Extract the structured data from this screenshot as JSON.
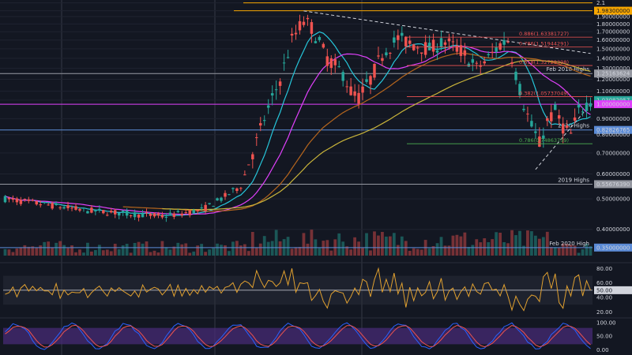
{
  "chart_data": {
    "type": "candlestick",
    "price_axis": {
      "range": [
        0.33,
        2.12
      ],
      "ticks": [
        "2.1",
        "1.98300000",
        "1.90000000",
        "1.80000000",
        "1.70000000",
        "1.60000000",
        "1.50000000",
        "1.40000000",
        "1.30000000",
        "1.25163624",
        "1.20000000",
        "1.10000000",
        "1.03082957",
        "1.00000000",
        "0.90000000",
        "0.82826765",
        "0.80000000",
        "0.70000000",
        "0.60000000",
        "0.55676390",
        "0.50000000",
        "0.40000000",
        "0.35000000"
      ],
      "tick_values": [
        2.1,
        1.983,
        1.9,
        1.8,
        1.7,
        1.6,
        1.5,
        1.4,
        1.3,
        1.25163624,
        1.2,
        1.1,
        1.03082957,
        1.0,
        0.9,
        0.82826765,
        0.8,
        0.7,
        0.6,
        0.5567639,
        0.5,
        0.4,
        0.35
      ]
    },
    "current_price": {
      "label": "1.03082957",
      "value": 1.03082957,
      "color": "#26a69a"
    },
    "horizontal_levels": [
      {
        "value": 1.983,
        "label": "1.98300000",
        "color": "#f7a600",
        "tag": ""
      },
      {
        "value": 1.25163624,
        "label": "1.25163624",
        "color": "#9598a1",
        "tag": "Feb 2018 Highs"
      },
      {
        "value": 1.0,
        "label": "1.00000000",
        "color": "#e040fb",
        "tag": ""
      },
      {
        "value": 0.82826765,
        "label": "0.82826765",
        "color": "#5b8bd6",
        "tag": "2020 Highs"
      },
      {
        "value": 0.5567639,
        "label": "0.55676390",
        "color": "#9598a1",
        "tag": "2019 Highs"
      },
      {
        "value": 0.35,
        "label": "0.35000000",
        "color": "#5b8bd6",
        "tag": "Feb 2020 High"
      }
    ],
    "fibonacci": [
      {
        "label": "0.886(1.63381727)",
        "value": 1.63381727,
        "color": "#f05454"
      },
      {
        "label": "0.786(1.51944291)",
        "value": 1.51944291,
        "color": "#f05454"
      },
      {
        "label": "0.618(1.32729398)",
        "value": 1.32729398,
        "color": "#f05454"
      },
      {
        "label": "0.382(1.05737049)",
        "value": 1.05737049,
        "color": "#f05454"
      },
      {
        "label": "0.786(0.74863759)",
        "value": 0.74863759,
        "color": "#4caf50"
      }
    ],
    "rsi": {
      "ticks": [
        "80.00",
        "60.00",
        "50.00",
        "40.00",
        "20.00"
      ],
      "tick_values": [
        80,
        60,
        50,
        40,
        20
      ],
      "current": "50.00",
      "band": [
        30,
        70
      ],
      "range": [
        15,
        88
      ]
    },
    "stoch_rsi": {
      "ticks": [
        "100.00",
        "50.00",
        "0.00"
      ],
      "tick_values": [
        100,
        50,
        0
      ],
      "band": [
        20,
        80
      ],
      "range": [
        -5,
        108
      ]
    },
    "colors": {
      "up": "#26a69a",
      "down": "#ef5350",
      "ma_fast": "#26c6da",
      "ma_mid": "#e040fb",
      "ma_slow": "#c9b43a",
      "ma_orange": "#b5651d",
      "rsi": "#e0a030",
      "k": "#2962ff",
      "d": "#ef5350",
      "background": "#131722",
      "grid": "#2a2e39"
    }
  }
}
